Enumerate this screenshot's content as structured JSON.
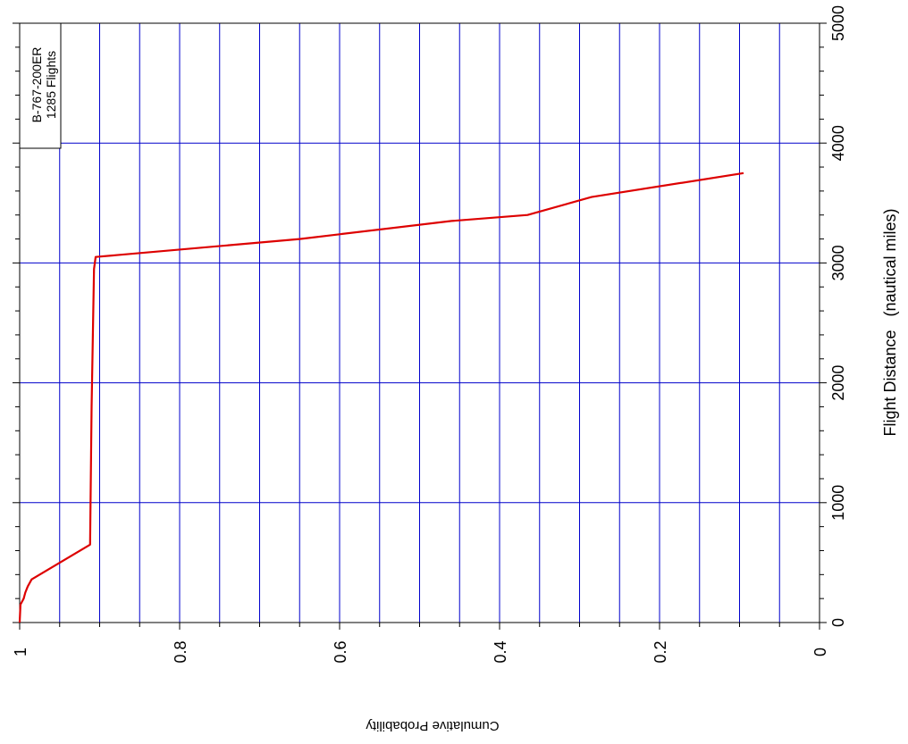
{
  "chart_data": {
    "type": "line",
    "orientation": "rotated-90",
    "title": "",
    "xlabel": "Flight Distance   (nautical miles)",
    "ylabel": "Cumulative Probability",
    "xlim": [
      0,
      5000
    ],
    "ylim": [
      0,
      1
    ],
    "x_major_ticks": [
      0,
      1000,
      2000,
      3000,
      4000,
      5000
    ],
    "x_tick_labels": [
      "0",
      "1000",
      "2000",
      "3000",
      "4000",
      "5000"
    ],
    "y_major_ticks": [
      0,
      0.2,
      0.4,
      0.6,
      0.8,
      1
    ],
    "y_tick_labels": [
      "0",
      "0.2",
      "0.4",
      "0.6",
      "0.8",
      "1"
    ],
    "grid": true,
    "grid_color": "#0000cc",
    "line_color": "#dd0000",
    "legend": {
      "line1": "B-767-200ER",
      "line2": "1285 Flights",
      "placement": "top-left"
    },
    "series": [
      {
        "x": [
          0,
          150,
          200,
          250,
          300,
          360,
          650,
          1800,
          2950,
          3050,
          3200,
          3350,
          3400,
          3550,
          3750
        ],
        "y": [
          1.0,
          0.999,
          0.995,
          0.993,
          0.99,
          0.985,
          0.912,
          0.91,
          0.907,
          0.905,
          0.65,
          0.46,
          0.365,
          0.285,
          0.095
        ]
      }
    ]
  }
}
